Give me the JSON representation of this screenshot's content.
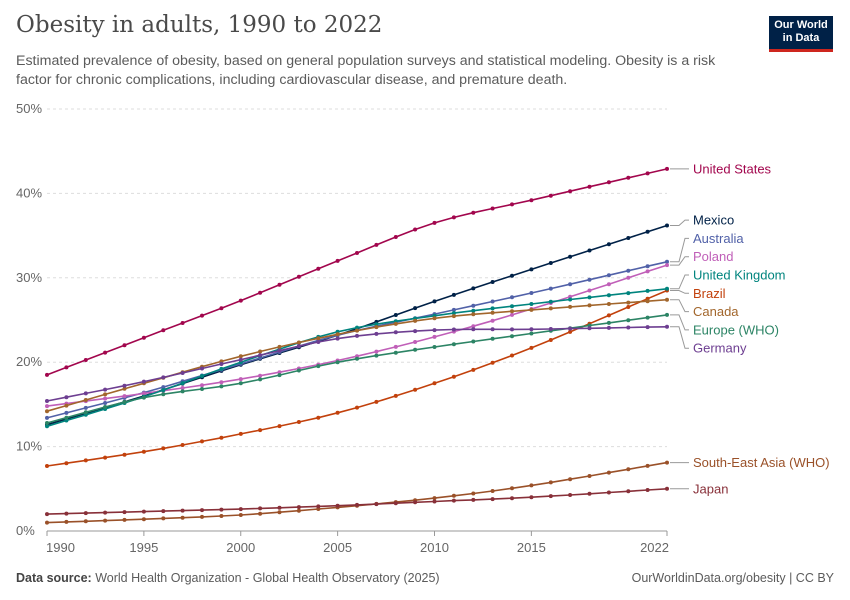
{
  "title": "Obesity in adults, 1990 to 2022",
  "subtitle": "Estimated prevalence of obesity, based on general population surveys and statistical modeling. Obesity is a risk factor for chronic complications, including cardiovascular disease, and premature death.",
  "logo": {
    "line1": "Our World",
    "line2": "in Data"
  },
  "footer": {
    "source_label": "Data source:",
    "source_text": "World Health Organization - Global Health Observatory (2025)",
    "right": "OurWorldinData.org/obesity | CC BY"
  },
  "chart_data": {
    "type": "line",
    "xlim": [
      1990,
      2022
    ],
    "ylim": [
      0,
      50
    ],
    "xticks": [
      1990,
      1995,
      2000,
      2005,
      2010,
      2015,
      2022
    ],
    "xtick_labels": [
      "1990",
      "1995",
      "2000",
      "2005",
      "2010",
      "2015",
      "2022"
    ],
    "yticks": [
      0,
      10,
      20,
      30,
      40,
      50
    ],
    "ytick_labels": [
      "0%",
      "10%",
      "20%",
      "30%",
      "40%",
      "50%"
    ],
    "grid": "horizontal dashed",
    "legend": "right, labels at line ends",
    "series": [
      {
        "name": "United States",
        "color": "#a2064d",
        "start": 18.5,
        "end": 42.9,
        "keypoints": [
          [
            1990,
            18.5
          ],
          [
            1995,
            22.9
          ],
          [
            2000,
            27.3
          ],
          [
            2005,
            32.0
          ],
          [
            2010,
            36.5
          ],
          [
            2015,
            39.2
          ],
          [
            2022,
            42.9
          ]
        ]
      },
      {
        "name": "Mexico",
        "color": "#002147",
        "start": 12.6,
        "end": 36.2,
        "keypoints": [
          [
            1990,
            12.6
          ],
          [
            1995,
            16.0
          ],
          [
            2000,
            19.7
          ],
          [
            2005,
            23.2
          ],
          [
            2010,
            27.2
          ],
          [
            2015,
            31.0
          ],
          [
            2022,
            36.2
          ]
        ]
      },
      {
        "name": "Australia",
        "color": "#5161a8",
        "start": 13.4,
        "end": 31.9,
        "keypoints": [
          [
            1990,
            13.4
          ],
          [
            1995,
            16.4
          ],
          [
            2000,
            19.8
          ],
          [
            2005,
            23.2
          ],
          [
            2010,
            25.7
          ],
          [
            2015,
            28.2
          ],
          [
            2022,
            31.9
          ]
        ]
      },
      {
        "name": "Poland",
        "color": "#c05fb8",
        "start": 14.8,
        "end": 31.5,
        "keypoints": [
          [
            1990,
            14.8
          ],
          [
            1995,
            16.3
          ],
          [
            2000,
            18.0
          ],
          [
            2005,
            20.2
          ],
          [
            2010,
            23.0
          ],
          [
            2015,
            26.3
          ],
          [
            2022,
            31.5
          ]
        ]
      },
      {
        "name": "Brazil",
        "color": "#c2410c",
        "start": 7.7,
        "end": 28.5,
        "keypoints": [
          [
            1990,
            7.7
          ],
          [
            1995,
            9.4
          ],
          [
            2000,
            11.5
          ],
          [
            2005,
            14.0
          ],
          [
            2010,
            17.5
          ],
          [
            2015,
            21.7
          ],
          [
            2022,
            28.5
          ]
        ]
      },
      {
        "name": "United Kingdom",
        "color": "#00847e",
        "start": 12.4,
        "end": 28.7,
        "keypoints": [
          [
            1990,
            12.4
          ],
          [
            1995,
            15.9
          ],
          [
            2000,
            20.0
          ],
          [
            2005,
            23.6
          ],
          [
            2010,
            25.5
          ],
          [
            2015,
            26.9
          ],
          [
            2022,
            28.7
          ]
        ]
      },
      {
        "name": "Canada",
        "color": "#a2662c",
        "start": 14.2,
        "end": 27.4,
        "keypoints": [
          [
            1990,
            14.2
          ],
          [
            1995,
            17.5
          ],
          [
            2000,
            20.7
          ],
          [
            2005,
            23.3
          ],
          [
            2010,
            25.2
          ],
          [
            2015,
            26.2
          ],
          [
            2022,
            27.4
          ]
        ]
      },
      {
        "name": "Europe (WHO)",
        "color": "#2c8465",
        "start": 12.8,
        "end": 25.6,
        "keypoints": [
          [
            1990,
            12.8
          ],
          [
            1995,
            15.8
          ],
          [
            2000,
            17.5
          ],
          [
            2005,
            20.0
          ],
          [
            2010,
            21.8
          ],
          [
            2015,
            23.4
          ],
          [
            2022,
            25.6
          ]
        ]
      },
      {
        "name": "Germany",
        "color": "#6d3e91",
        "start": 15.4,
        "end": 24.2,
        "keypoints": [
          [
            1990,
            15.4
          ],
          [
            1995,
            17.7
          ],
          [
            2000,
            20.3
          ],
          [
            2005,
            22.8
          ],
          [
            2010,
            23.8
          ],
          [
            2015,
            23.9
          ],
          [
            2022,
            24.2
          ]
        ]
      },
      {
        "name": "South-East Asia (WHO)",
        "color": "#9a5129",
        "start": 1.0,
        "end": 8.1,
        "keypoints": [
          [
            1990,
            1.0
          ],
          [
            1995,
            1.4
          ],
          [
            2000,
            1.9
          ],
          [
            2005,
            2.8
          ],
          [
            2010,
            3.9
          ],
          [
            2015,
            5.4
          ],
          [
            2022,
            8.1
          ]
        ]
      },
      {
        "name": "Japan",
        "color": "#883039",
        "start": 2.0,
        "end": 5.0,
        "keypoints": [
          [
            1990,
            2.0
          ],
          [
            1995,
            2.3
          ],
          [
            2000,
            2.6
          ],
          [
            2005,
            3.0
          ],
          [
            2010,
            3.5
          ],
          [
            2015,
            4.0
          ],
          [
            2022,
            5.0
          ]
        ]
      }
    ]
  }
}
